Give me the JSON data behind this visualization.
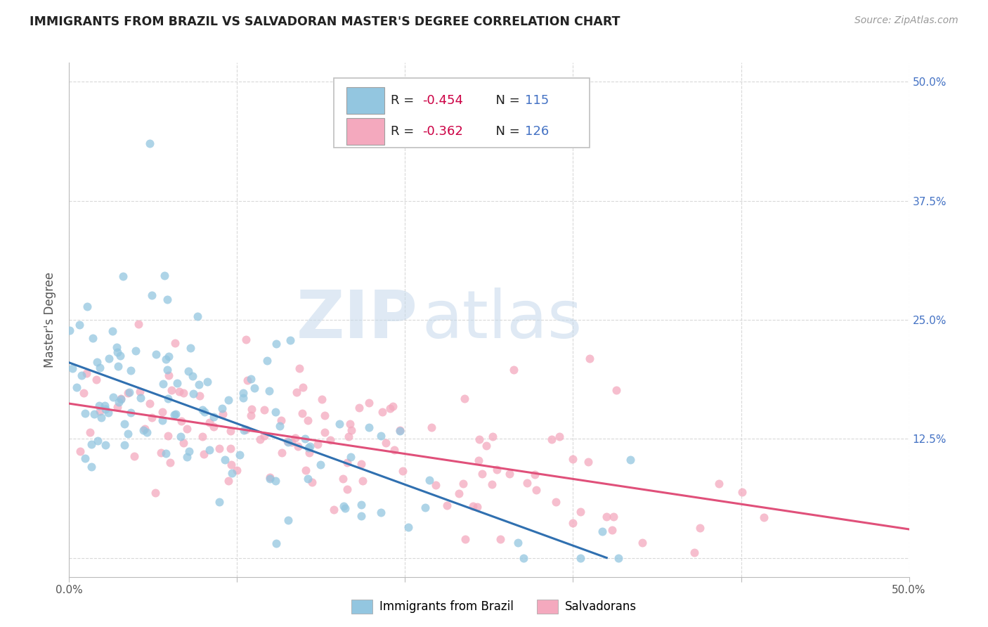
{
  "title": "IMMIGRANTS FROM BRAZIL VS SALVADORAN MASTER'S DEGREE CORRELATION CHART",
  "source": "Source: ZipAtlas.com",
  "ylabel": "Master's Degree",
  "x_ticks": [
    0.0,
    0.1,
    0.2,
    0.3,
    0.4,
    0.5
  ],
  "x_tick_labels": [
    "0.0%",
    "",
    "",
    "",
    "",
    "50.0%"
  ],
  "y_ticks": [
    0.0,
    0.125,
    0.25,
    0.375,
    0.5
  ],
  "y_tick_labels": [
    "",
    "12.5%",
    "25.0%",
    "37.5%",
    "50.0%"
  ],
  "xlim": [
    0.0,
    0.5
  ],
  "ylim": [
    -0.02,
    0.52
  ],
  "brazil_line_x": [
    0.0,
    0.32
  ],
  "brazil_line_y": [
    0.205,
    0.0
  ],
  "salv_line_x": [
    0.0,
    0.5
  ],
  "salv_line_y": [
    0.162,
    0.03
  ],
  "brazil_color": "#93c6e0",
  "salvadoran_color": "#f4a9be",
  "brazil_line_color": "#3070b0",
  "salvadoran_line_color": "#e0507a",
  "legend_label_brazil": "Immigrants from Brazil",
  "legend_label_salvadoran": "Salvadorans",
  "watermark_zip": "ZIP",
  "watermark_atlas": "atlas",
  "background_color": "#ffffff",
  "grid_color": "#d0d0d0",
  "title_color": "#222222",
  "right_tick_color": "#4472c4",
  "legend_R_color": "#1a1a1a",
  "legend_val_color": "#cc0044",
  "legend_N_color": "#4472c4",
  "brazil_scatter_seed": 101,
  "salv_scatter_seed": 202,
  "brazil_N": 115,
  "salvadoran_N": 126
}
